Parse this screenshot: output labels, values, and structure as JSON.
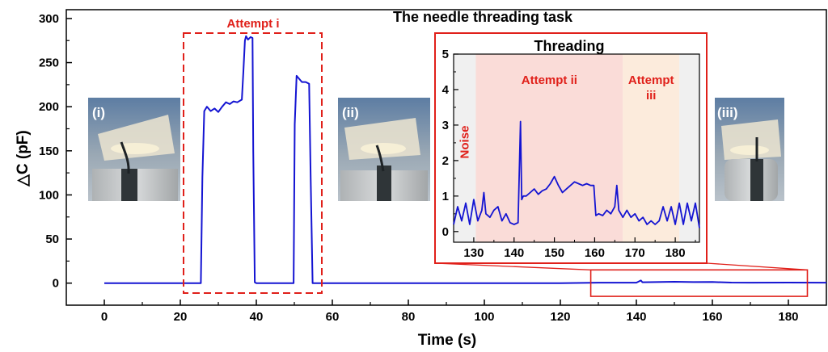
{
  "chart_data": [
    {
      "type": "line",
      "title": "The needle threading task",
      "xlabel": "Time (s)",
      "ylabel": "△C (pF)",
      "xlim": [
        -10,
        190
      ],
      "ylim": [
        -25,
        310
      ],
      "xticks": [
        0,
        20,
        40,
        60,
        80,
        100,
        120,
        140,
        160,
        180
      ],
      "yticks": [
        0,
        50,
        100,
        150,
        200,
        250,
        300
      ],
      "grid": false,
      "line_color": "#1414d2",
      "series": [
        {
          "x": [
            0,
            25.4,
            25.8,
            26.3,
            27,
            28,
            29,
            30,
            31,
            32,
            33,
            34,
            35,
            36.2,
            36.6,
            37,
            37.3,
            37.8,
            38.5,
            39,
            39.2,
            39.6,
            40,
            45,
            49.8,
            50.1,
            50.6,
            51,
            52,
            53,
            53.9,
            54.3,
            54.8,
            60,
            80,
            100,
            120,
            130,
            140,
            141.2,
            141.6,
            145,
            150,
            155,
            160,
            165,
            170,
            180,
            190
          ],
          "values": [
            0,
            0,
            120,
            195,
            200,
            195,
            198,
            194,
            200,
            205,
            203,
            206,
            205,
            208,
            240,
            275,
            280,
            276,
            279,
            278,
            150,
            1,
            0,
            0,
            0,
            180,
            235,
            233,
            228,
            228,
            226,
            120,
            0,
            0,
            0,
            0,
            0,
            0.5,
            0.5,
            3,
            1,
            1.2,
            1.5,
            1.2,
            1.3,
            0.6,
            0.5,
            0.6,
            0.5
          ]
        }
      ],
      "annotations": {
        "attempt_i": "Attempt i",
        "zoom_box": {
          "x": [
            128,
            185
          ],
          "y": [
            -15,
            15
          ]
        }
      }
    },
    {
      "type": "line",
      "title": "Threading",
      "xlim": [
        125,
        186
      ],
      "ylim": [
        -0.3,
        5
      ],
      "xticks": [
        130,
        140,
        150,
        160,
        170,
        180
      ],
      "yticks": [
        0,
        1,
        2,
        3,
        4,
        5
      ],
      "line_color": "#1414d2",
      "regions": [
        {
          "label": "Noise",
          "x": [
            125,
            130.5
          ],
          "color": "#f0f0f0"
        },
        {
          "label": "Attempt ii",
          "x": [
            130.5,
            167
          ],
          "color": "#fadcd8"
        },
        {
          "label": "Attempt\niii",
          "x": [
            167,
            181
          ],
          "color": "#fcebdc"
        },
        {
          "label": "",
          "x": [
            181,
            186
          ],
          "color": "#f0f0f0"
        }
      ],
      "series": [
        {
          "x": [
            125,
            126,
            127,
            128,
            129,
            130,
            131,
            132,
            132.5,
            133,
            134,
            135,
            136,
            137,
            138,
            139,
            140,
            141,
            141.6,
            141.9,
            142.3,
            143,
            144,
            145,
            146,
            147,
            148,
            149,
            150,
            151,
            152,
            153,
            154,
            155,
            156,
            157,
            158,
            159,
            159.8,
            160.3,
            161,
            162,
            163,
            164,
            165,
            165.5,
            166,
            167,
            168,
            169,
            170,
            171,
            172,
            173,
            174,
            175,
            176,
            177,
            178,
            179,
            180,
            181,
            182,
            183,
            184,
            185,
            186
          ],
          "values": [
            0.2,
            0.7,
            0.3,
            0.8,
            0.2,
            0.9,
            0.3,
            0.6,
            1.1,
            0.5,
            0.4,
            0.6,
            0.7,
            0.3,
            0.5,
            0.25,
            0.2,
            0.25,
            3.1,
            0.9,
            1.0,
            1.0,
            1.1,
            1.2,
            1.05,
            1.15,
            1.2,
            1.35,
            1.55,
            1.3,
            1.1,
            1.2,
            1.3,
            1.4,
            1.35,
            1.3,
            1.35,
            1.3,
            1.3,
            0.45,
            0.5,
            0.45,
            0.6,
            0.5,
            0.7,
            1.3,
            0.6,
            0.4,
            0.6,
            0.4,
            0.5,
            0.3,
            0.4,
            0.2,
            0.3,
            0.2,
            0.3,
            0.7,
            0.3,
            0.7,
            0.2,
            0.8,
            0.2,
            0.8,
            0.3,
            0.8,
            0.1
          ]
        }
      ]
    }
  ],
  "photos": [
    {
      "label": "(i)"
    },
    {
      "label": "(ii)"
    },
    {
      "label": "(iii)"
    }
  ]
}
